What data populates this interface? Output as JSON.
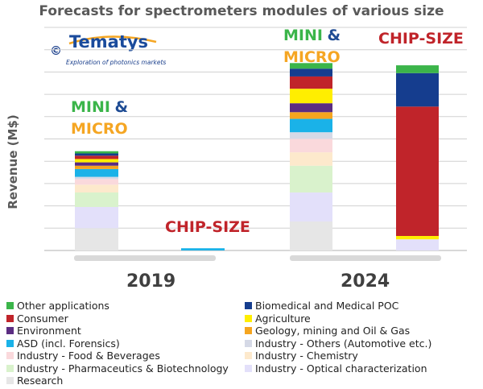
{
  "chart_data": {
    "type": "bar",
    "stacked": true,
    "title": "Forecasts for spectrometers modules of various size",
    "ylabel": "Revenue (M$)",
    "xlabel": "",
    "y_unit": "relative (unlabeled axis)",
    "ylim": [
      0,
      100
    ],
    "groups": [
      "2019",
      "2024"
    ],
    "bars": [
      {
        "group": "2019",
        "name": "MINI & MICRO"
      },
      {
        "group": "2019",
        "name": "CHIP-SIZE"
      },
      {
        "group": "2024",
        "name": "MINI & MICRO"
      },
      {
        "group": "2024",
        "name": "CHIP-SIZE"
      }
    ],
    "series": [
      {
        "name": "Research",
        "color": "#e6e6e6",
        "values": [
          10,
          0,
          13,
          0
        ]
      },
      {
        "name": "Industry - Optical characterization",
        "color": "#e3e0fa",
        "values": [
          9.5,
          0,
          13,
          5
        ]
      },
      {
        "name": "Industry - Pharmaceutics & Biotechnology",
        "color": "#d9f2cc",
        "values": [
          6.5,
          0,
          12,
          0
        ]
      },
      {
        "name": "Industry - Chemistry",
        "color": "#fde9cc",
        "values": [
          3.5,
          0,
          6,
          0
        ]
      },
      {
        "name": "Industry - Food & Beverages",
        "color": "#fad9dc",
        "values": [
          2.5,
          0,
          6,
          0
        ]
      },
      {
        "name": "Industry - Others (Automotive etc.)",
        "color": "#d5d9e6",
        "values": [
          1,
          0,
          3,
          0
        ]
      },
      {
        "name": "ASD (incl. Forensics)",
        "color": "#1ab2e8",
        "values": [
          3.5,
          1,
          6,
          0
        ]
      },
      {
        "name": "Geology, mining and Oil & Gas",
        "color": "#f5a51f",
        "values": [
          1.5,
          0,
          3,
          0
        ]
      },
      {
        "name": "Environment",
        "color": "#5b2d82",
        "values": [
          1.5,
          0,
          4,
          0
        ]
      },
      {
        "name": "Agriculture",
        "color": "#ffee00",
        "values": [
          1.5,
          0,
          6.5,
          1.5
        ]
      },
      {
        "name": "Consumer",
        "color": "#c0242a",
        "values": [
          1.5,
          0,
          5.5,
          58
        ]
      },
      {
        "name": "Biomedical and Medical POC",
        "color": "#153d8e",
        "values": [
          1,
          0,
          3.5,
          15
        ]
      },
      {
        "name": "Other applications",
        "color": "#3bb54a",
        "values": [
          1,
          0,
          2.5,
          3.5
        ]
      }
    ],
    "annotations": [
      "MINI & MICRO",
      "CHIP-SIZE"
    ],
    "legend_position": "bottom",
    "grid": true
  },
  "logo": {
    "copyright": "©",
    "name": "Tematys",
    "tagline": "Exploration of photonics markets"
  },
  "annotation_labels": {
    "mini": "MINI",
    "amp": "&",
    "micro": "MICRO",
    "chip": "CHIP-SIZE"
  },
  "legend": [
    {
      "label": "Other applications",
      "color": "#3bb54a"
    },
    {
      "label": "Biomedical and Medical POC",
      "color": "#153d8e"
    },
    {
      "label": "Consumer",
      "color": "#c0242a"
    },
    {
      "label": "Agriculture",
      "color": "#ffee00"
    },
    {
      "label": "Environment",
      "color": "#5b2d82"
    },
    {
      "label": "Geology, mining and Oil & Gas",
      "color": "#f5a51f"
    },
    {
      "label": "ASD (incl. Forensics)",
      "color": "#1ab2e8"
    },
    {
      "label": "Industry - Others (Automotive etc.)",
      "color": "#d5d9e6"
    },
    {
      "label": "Industry - Food & Beverages",
      "color": "#fad9dc"
    },
    {
      "label": "Industry - Chemistry",
      "color": "#fde9cc"
    },
    {
      "label": "Industry - Pharmaceutics & Biotechnology",
      "color": "#d9f2cc"
    },
    {
      "label": "Industry - Optical characterization",
      "color": "#e3e0fa"
    },
    {
      "label": "Research",
      "color": "#e6e6e6"
    }
  ]
}
